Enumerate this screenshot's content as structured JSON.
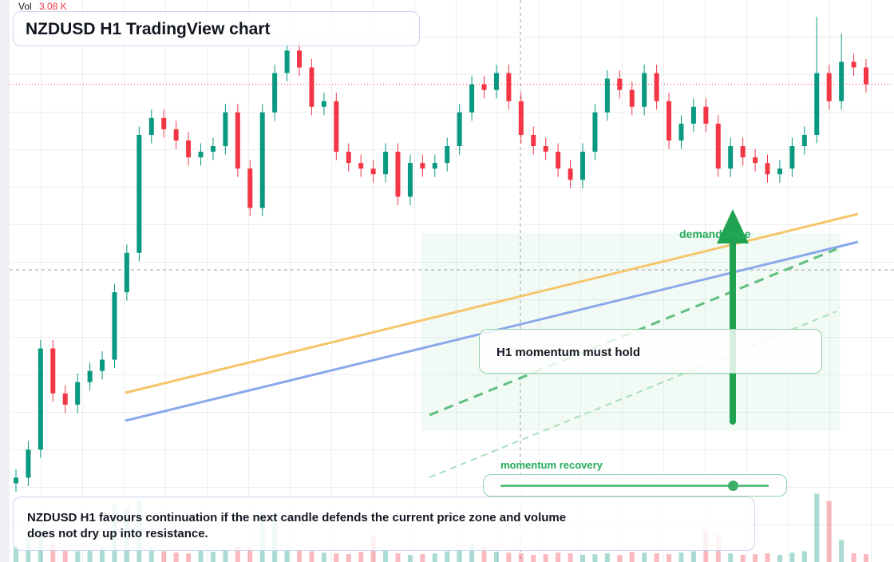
{
  "chart_data": {
    "type": "candlestick",
    "title": "NZDUSD H1 TradingView chart",
    "volume_title": "Vol",
    "volume_value_label": "3.08 K",
    "ylim": [
      0,
      100
    ],
    "volume_lim": [
      0,
      10
    ],
    "up_color": "#089981",
    "down_color": "#f23645",
    "ohlc": [
      [
        14,
        16.5,
        12.5,
        15
      ],
      [
        15,
        21.5,
        13.5,
        20
      ],
      [
        20,
        39.5,
        18.5,
        38
      ],
      [
        38,
        39.5,
        28.5,
        30
      ],
      [
        30,
        31.5,
        26.5,
        28
      ],
      [
        28,
        33.5,
        26.5,
        32
      ],
      [
        32,
        35.5,
        30.5,
        34
      ],
      [
        34,
        37.5,
        32.5,
        36
      ],
      [
        36,
        49.5,
        34.5,
        48
      ],
      [
        48,
        56.5,
        46.5,
        55
      ],
      [
        55,
        77.5,
        53.5,
        76
      ],
      [
        76,
        80.5,
        74.5,
        79
      ],
      [
        79,
        80.5,
        75.5,
        77
      ],
      [
        77,
        78.5,
        73.5,
        75
      ],
      [
        75,
        76.5,
        70.5,
        72
      ],
      [
        72,
        74.5,
        70.5,
        73
      ],
      [
        73,
        75.5,
        71.5,
        74
      ],
      [
        74,
        81.5,
        72.5,
        80
      ],
      [
        80,
        81.5,
        68.5,
        70
      ],
      [
        70,
        71.5,
        61.5,
        63
      ],
      [
        63,
        81.5,
        61.5,
        80
      ],
      [
        80,
        88.5,
        78.5,
        87
      ],
      [
        87,
        92.5,
        85.5,
        91
      ],
      [
        91,
        92.5,
        86.5,
        88
      ],
      [
        88,
        89.5,
        79.5,
        81
      ],
      [
        81,
        83.5,
        79.5,
        82
      ],
      [
        82,
        83.5,
        71.5,
        73
      ],
      [
        73,
        74.5,
        69.5,
        71
      ],
      [
        71,
        72.5,
        68.5,
        70
      ],
      [
        70,
        71.5,
        67.5,
        69
      ],
      [
        69,
        74.5,
        67.5,
        73
      ],
      [
        73,
        74.5,
        63.5,
        65
      ],
      [
        65,
        72.5,
        63.5,
        71
      ],
      [
        71,
        72.5,
        68.5,
        70
      ],
      [
        70,
        72.5,
        68.5,
        71
      ],
      [
        71,
        75.5,
        69.5,
        74
      ],
      [
        74,
        81.5,
        72.5,
        80
      ],
      [
        80,
        86.5,
        78.5,
        85
      ],
      [
        85,
        86.5,
        82.5,
        84
      ],
      [
        84,
        88.5,
        82.5,
        87
      ],
      [
        87,
        88.5,
        80.5,
        82
      ],
      [
        82,
        83.5,
        74.5,
        76
      ],
      [
        76,
        77.5,
        72.5,
        74
      ],
      [
        74,
        75.5,
        71.5,
        73
      ],
      [
        73,
        74.5,
        68.5,
        70
      ],
      [
        70,
        71.5,
        66.5,
        68
      ],
      [
        68,
        74.5,
        66.5,
        73
      ],
      [
        73,
        81.5,
        71.5,
        80
      ],
      [
        80,
        87.5,
        78.5,
        86
      ],
      [
        86,
        87.5,
        82.5,
        84
      ],
      [
        84,
        85.5,
        79.5,
        81
      ],
      [
        81,
        88.5,
        79.5,
        87
      ],
      [
        87,
        88.5,
        80.5,
        82
      ],
      [
        82,
        83.5,
        73.5,
        75
      ],
      [
        75,
        79.5,
        73.5,
        78
      ],
      [
        78,
        82.5,
        76.5,
        81
      ],
      [
        81,
        82.5,
        76.5,
        78
      ],
      [
        78,
        79.5,
        68.5,
        70
      ],
      [
        70,
        75.5,
        68.5,
        74
      ],
      [
        74,
        75.5,
        70.5,
        72
      ],
      [
        72,
        73.5,
        69.5,
        71
      ],
      [
        71,
        72.5,
        67.5,
        69
      ],
      [
        69,
        71.5,
        67.5,
        70
      ],
      [
        70,
        75.5,
        68.5,
        74
      ],
      [
        74,
        77.5,
        72.5,
        76
      ],
      [
        76,
        97,
        74.5,
        87
      ],
      [
        87,
        88.5,
        80.5,
        82
      ],
      [
        82,
        94,
        80.5,
        89
      ],
      [
        89,
        90.5,
        86.5,
        88
      ],
      [
        88,
        89.5,
        83.5,
        85
      ]
    ],
    "volumes": [
      2.2,
      3.5,
      4.2,
      2.5,
      1.8,
      1.5,
      1.6,
      2.0,
      8.0,
      7.5,
      8.5,
      2.0,
      1.5,
      1.3,
      1.2,
      1.6,
      1.4,
      1.8,
      2.2,
      2.0,
      7.0,
      6.5,
      1.8,
      1.6,
      1.5,
      1.3,
      1.2,
      1.1,
      1.4,
      3.5,
      1.6,
      1.2,
      1.0,
      1.1,
      1.2,
      1.5,
      1.8,
      2.5,
      2.2,
      1.4,
      1.3,
      1.2,
      1.0,
      1.1,
      1.3,
      1.2,
      1.0,
      1.1,
      1.2,
      1.0,
      1.4,
      1.3,
      1.2,
      1.1,
      1.3,
      1.5,
      4.5,
      3.8,
      1.2,
      1.0,
      1.1,
      1.2,
      1.0,
      1.3,
      1.5,
      9.5,
      8.5,
      3.08,
      1.2,
      1.1
    ],
    "annotations": {
      "demand_zone": "demand zone",
      "momentum_box": "H1 momentum must hold",
      "momentum_recovery": "momentum recovery",
      "caption": "NZDUSD H1 favours continuation if the next candle defends the current price zone and volume does not dry up into resistance."
    }
  }
}
